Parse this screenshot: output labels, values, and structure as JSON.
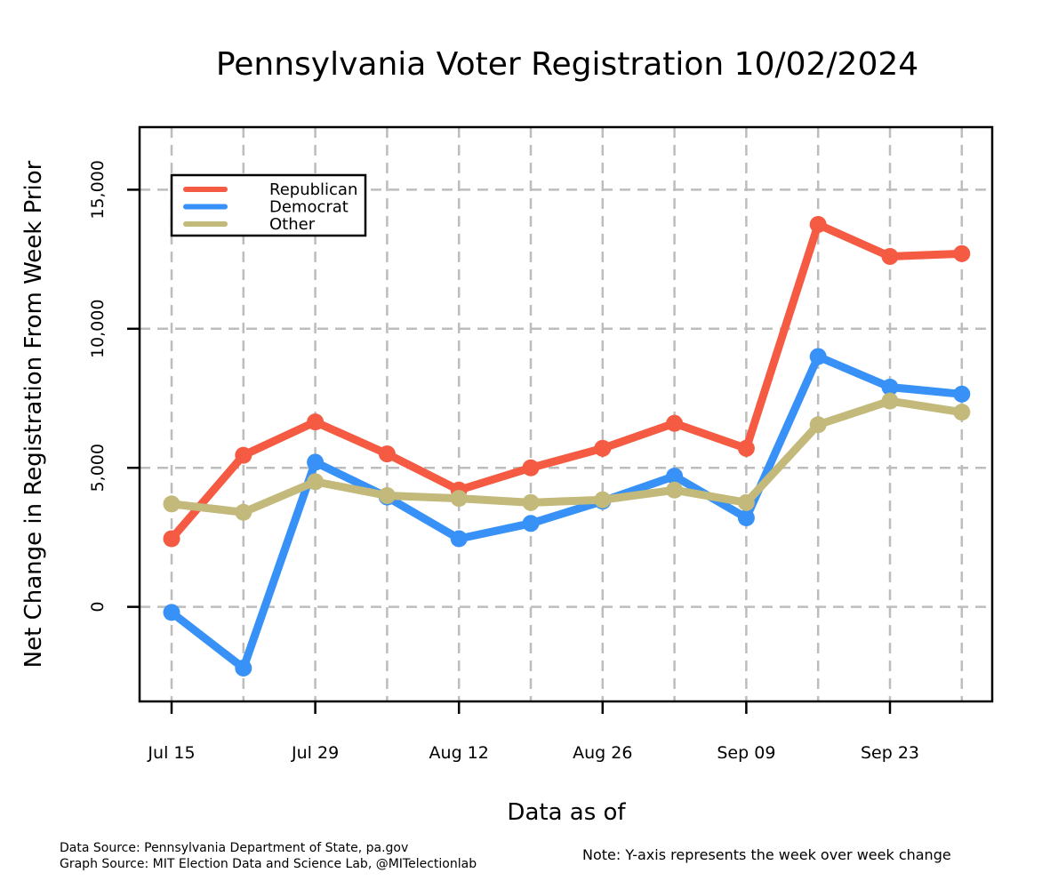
{
  "chart_data": {
    "type": "line",
    "title": "Pennsylvania Voter Registration 10/02/2024",
    "xlabel": "Data as of",
    "ylabel": "Net Change in Registration From Week Prior",
    "x_ticks": [
      "Jul 15",
      "Jul 29",
      "Aug 12",
      "Aug 26",
      "Sep 09",
      "Sep 23"
    ],
    "x_points": [
      "Jul 15",
      "Jul 22",
      "Jul 29",
      "Aug 05",
      "Aug 12",
      "Aug 19",
      "Aug 26",
      "Sep 02",
      "Sep 09",
      "Sep 16",
      "Sep 23",
      "Sep 30"
    ],
    "y_ticks": [
      0,
      5000,
      10000,
      15000
    ],
    "y_tick_labels": [
      "0",
      "5,000",
      "10,000",
      "15,000"
    ],
    "ylim": [
      -3400,
      17250
    ],
    "grid": true,
    "legend_position": "top-left",
    "series": [
      {
        "name": "Republican",
        "color": "#f55a42",
        "values": [
          2450,
          5450,
          6650,
          5500,
          4200,
          5000,
          5700,
          6600,
          5700,
          13750,
          12600,
          12700
        ]
      },
      {
        "name": "Democrat",
        "color": "#3791f7",
        "values": [
          -200,
          -2200,
          5200,
          3950,
          2450,
          3000,
          3800,
          4700,
          3200,
          9000,
          7900,
          7650
        ]
      },
      {
        "name": "Other",
        "color": "#c2b97a",
        "values": [
          3700,
          3400,
          4500,
          4000,
          3900,
          3750,
          3850,
          4200,
          3750,
          6550,
          7400,
          7000
        ]
      }
    ]
  },
  "footer": {
    "data_source": "Data Source: Pennsylvania Department of State, pa.gov",
    "graph_source": "Graph Source: MIT Election Data and Science Lab, @MITelectionlab",
    "note": "Note: Y-axis represents the week over week change"
  }
}
